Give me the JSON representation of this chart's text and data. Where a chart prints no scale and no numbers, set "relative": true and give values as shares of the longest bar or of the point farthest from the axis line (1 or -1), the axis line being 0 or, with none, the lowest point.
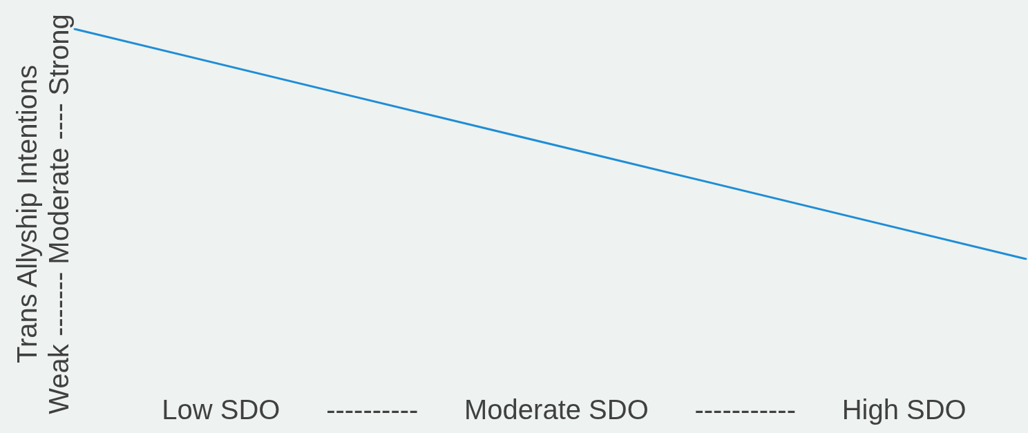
{
  "chart_data": {
    "type": "line",
    "relative": true,
    "categories": [
      null,
      null
    ],
    "xlabel": "Low SDO      ----------      Moderate SDO      -----------      High SDO",
    "ylabel": "Trans Allyship Intentions\nWeak ------- Moderate ---- Strong",
    "series": [
      {
        "color": "#1f8dd6",
        "values": [
          1,
          0
        ]
      }
    ],
    "marker": "none"
  }
}
